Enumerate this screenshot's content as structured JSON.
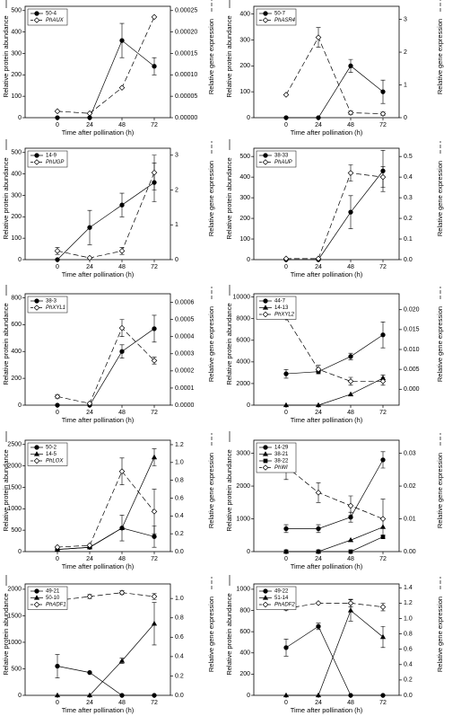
{
  "chart_data": [
    {
      "type": "line",
      "x": [
        0,
        24,
        48,
        72
      ],
      "xlim": [
        -24,
        84
      ],
      "xticks": [
        0,
        24,
        48,
        72
      ],
      "xlabel": "Time after pollination (h)",
      "ylabel": "Relative protein abundance",
      "y2label": "Relative gene expression",
      "ylim": [
        0,
        520
      ],
      "yticks": [
        0,
        100,
        200,
        300,
        400,
        500
      ],
      "y2lim": [
        0,
        0.00026
      ],
      "y2ticks": [
        {
          "value": 0,
          "label": "0.00000"
        },
        {
          "value": 5e-05,
          "label": "0.00005"
        },
        {
          "value": 0.0001,
          "label": "0.00010"
        },
        {
          "value": 0.00015,
          "label": "0.00015"
        },
        {
          "value": 0.0002,
          "label": "0.00020"
        },
        {
          "value": 0.00025,
          "label": "0.00025"
        }
      ],
      "series": [
        {
          "name": "50-4",
          "marker": "circle",
          "values": [
            0,
            0,
            360,
            240
          ],
          "errors": [
            0,
            0,
            80,
            40
          ]
        },
        {
          "name": "PhAUX",
          "marker": "diamond",
          "axis": "y2",
          "italic": true,
          "values": [
            1.5e-05,
            1e-05,
            7e-05,
            0.000235
          ],
          "errors": [
            0,
            0,
            0,
            0
          ]
        }
      ]
    },
    {
      "type": "line",
      "x": [
        0,
        24,
        48,
        72
      ],
      "xlim": [
        -24,
        84
      ],
      "xticks": [
        0,
        24,
        48,
        72
      ],
      "xlabel": "Time after pollination (h)",
      "ylabel": "Relative protein abundance",
      "y2label": "Relative gene expression",
      "ylim": [
        0,
        430
      ],
      "yticks": [
        0,
        100,
        200,
        300,
        400
      ],
      "y2lim": [
        0,
        3.4
      ],
      "y2ticks": [
        0,
        1,
        2,
        3
      ],
      "series": [
        {
          "name": "50-7",
          "marker": "circle",
          "values": [
            0,
            0,
            200,
            100
          ],
          "errors": [
            0,
            0,
            25,
            45
          ]
        },
        {
          "name": "PhASR4",
          "marker": "diamond",
          "axis": "y2",
          "italic": true,
          "values": [
            0.7,
            2.45,
            0.15,
            0.12
          ],
          "errors": [
            0,
            0.3,
            0.05,
            0.05
          ]
        }
      ]
    },
    {
      "type": "line",
      "x": [
        0,
        24,
        48,
        72
      ],
      "xlim": [
        -24,
        84
      ],
      "xticks": [
        0,
        24,
        48,
        72
      ],
      "xlabel": "Time after pollination (h)",
      "ylabel": "Relative protein abundance",
      "y2label": "Relative gene expression",
      "ylim": [
        0,
        520
      ],
      "yticks": [
        0,
        100,
        200,
        300,
        400,
        500
      ],
      "y2lim": [
        0,
        3.2
      ],
      "y2ticks": [
        0,
        1,
        2,
        3
      ],
      "series": [
        {
          "name": "14-9",
          "marker": "circle",
          "values": [
            0,
            150,
            255,
            360
          ],
          "errors": [
            0,
            80,
            55,
            90
          ]
        },
        {
          "name": "PhUGP",
          "marker": "diamond",
          "axis": "y2",
          "italic": true,
          "values": [
            0.25,
            0.05,
            0.25,
            2.5
          ],
          "errors": [
            0.1,
            0,
            0.1,
            0.5
          ]
        }
      ]
    },
    {
      "type": "line",
      "x": [
        0,
        24,
        48,
        72
      ],
      "xlim": [
        -24,
        84
      ],
      "xticks": [
        0,
        24,
        48,
        72
      ],
      "xlabel": "Time after pollination (h)",
      "ylabel": "Relative protein abundance",
      "y2label": "Relative gene expression",
      "ylim": [
        0,
        540
      ],
      "yticks": [
        0,
        100,
        200,
        300,
        400,
        500
      ],
      "y2lim": [
        0,
        0.54
      ],
      "y2ticks": [
        {
          "value": 0,
          "label": "0.0"
        },
        0.1,
        0.2,
        0.3,
        0.4,
        0.5
      ],
      "series": [
        {
          "name": "38-33",
          "marker": "circle",
          "values": [
            0,
            0,
            230,
            430
          ],
          "errors": [
            0,
            0,
            80,
            100
          ]
        },
        {
          "name": "PhAUP",
          "marker": "diamond",
          "axis": "y2",
          "italic": true,
          "values": [
            0.005,
            0.005,
            0.42,
            0.4
          ],
          "errors": [
            0,
            0,
            0.04,
            0.05
          ]
        }
      ]
    },
    {
      "type": "line",
      "x": [
        0,
        24,
        48,
        72
      ],
      "xlim": [
        -24,
        84
      ],
      "xticks": [
        0,
        24,
        48,
        72
      ],
      "xlabel": "Time after pollination (h)",
      "ylabel": "Relative protein abundance",
      "y2label": "Relative gene expression",
      "ylim": [
        0,
        830
      ],
      "yticks": [
        0,
        200,
        400,
        600,
        800
      ],
      "y2lim": [
        0,
        0.00065
      ],
      "y2ticks": [
        {
          "value": 0,
          "label": "0.0000"
        },
        {
          "value": 0.0001,
          "label": "0.0001"
        },
        {
          "value": 0.0002,
          "label": "0.0002"
        },
        {
          "value": 0.0003,
          "label": "0.0003"
        },
        {
          "value": 0.0004,
          "label": "0.0004"
        },
        {
          "value": 0.0005,
          "label": "0.0005"
        },
        {
          "value": 0.0006,
          "label": "0.0006"
        }
      ],
      "series": [
        {
          "name": "38-3",
          "marker": "circle",
          "values": [
            0,
            0,
            400,
            570
          ],
          "errors": [
            0,
            0,
            50,
            100
          ]
        },
        {
          "name": "PhXYL1",
          "marker": "diamond",
          "axis": "y2",
          "italic": true,
          "values": [
            5e-05,
            1e-05,
            0.00045,
            0.00026
          ],
          "errors": [
            1e-05,
            0,
            5e-05,
            2e-05
          ]
        }
      ]
    },
    {
      "type": "line",
      "x": [
        0,
        24,
        48,
        72
      ],
      "xlim": [
        -24,
        84
      ],
      "xticks": [
        0,
        24,
        48,
        72
      ],
      "xlabel": "Time after pollination (h)",
      "ylabel": "Relative protein abundance",
      "y2label": "Relative gene expression",
      "ylim": [
        0,
        10300
      ],
      "yticks": [
        0,
        2000,
        4000,
        6000,
        8000,
        10000
      ],
      "y2lim": [
        -0.004,
        0.024
      ],
      "y2ticks": [
        {
          "value": 0,
          "label": "0.000"
        },
        {
          "value": 0.005,
          "label": "0.005"
        },
        {
          "value": 0.01,
          "label": "0.010"
        },
        {
          "value": 0.015,
          "label": "0.015"
        },
        {
          "value": 0.02,
          "label": "0.020"
        }
      ],
      "series": [
        {
          "name": "44-7",
          "marker": "circle",
          "values": [
            2900,
            3100,
            4500,
            6500
          ],
          "errors": [
            400,
            200,
            300,
            1200
          ]
        },
        {
          "name": "14-13",
          "marker": "triangle",
          "values": [
            0,
            0,
            1000,
            2500
          ],
          "errors": [
            0,
            0,
            0,
            300
          ]
        },
        {
          "name": "PhXYL2",
          "marker": "diamond",
          "axis": "y2",
          "italic": true,
          "values": [
            0.018,
            0.005,
            0.002,
            0.002
          ],
          "errors": [
            0,
            0.001,
            0.001,
            0.001
          ]
        }
      ]
    },
    {
      "type": "line",
      "x": [
        0,
        24,
        48,
        72
      ],
      "xlim": [
        -24,
        84
      ],
      "xticks": [
        0,
        24,
        48,
        72
      ],
      "xlabel": "Time after pollination (h)",
      "ylabel": "Relative protein abundance",
      "y2label": "Relative gene expression",
      "ylim": [
        0,
        2600
      ],
      "yticks": [
        0,
        500,
        1000,
        1500,
        2000,
        2500
      ],
      "y2lim": [
        0,
        1.25
      ],
      "y2ticks": [
        {
          "value": 0,
          "label": "0.0"
        },
        0.2,
        0.4,
        0.6,
        0.8,
        {
          "value": 1,
          "label": "1.0"
        },
        1.2
      ],
      "series": [
        {
          "name": "50-2",
          "marker": "circle",
          "values": [
            50,
            100,
            550,
            350
          ],
          "errors": [
            0,
            0,
            300,
            250
          ]
        },
        {
          "name": "14-5",
          "marker": "triangle",
          "values": [
            50,
            100,
            550,
            2200
          ],
          "errors": [
            0,
            0,
            0,
            200
          ]
        },
        {
          "name": "PhLOX",
          "marker": "diamond",
          "axis": "y2",
          "italic": true,
          "values": [
            0.05,
            0.07,
            0.9,
            0.45
          ],
          "errors": [
            0,
            0,
            0.15,
            0.25
          ]
        }
      ]
    },
    {
      "type": "line",
      "x": [
        0,
        24,
        48,
        72
      ],
      "xlim": [
        -24,
        84
      ],
      "xticks": [
        0,
        24,
        48,
        72
      ],
      "xlabel": "Time after pollination (h)",
      "ylabel": "Relative protein abundance",
      "y2label": "Relative gene expression",
      "ylim": [
        0,
        3400
      ],
      "yticks": [
        0,
        1000,
        2000,
        3000
      ],
      "y2lim": [
        0,
        0.034
      ],
      "y2ticks": [
        {
          "value": 0,
          "label": "0.00"
        },
        {
          "value": 0.01,
          "label": "0.01"
        },
        {
          "value": 0.02,
          "label": "0.02"
        },
        {
          "value": 0.03,
          "label": "0.03"
        }
      ],
      "series": [
        {
          "name": "14-29",
          "marker": "circle",
          "values": [
            700,
            700,
            1050,
            2800
          ],
          "errors": [
            120,
            120,
            150,
            250
          ]
        },
        {
          "name": "38-21",
          "marker": "triangle",
          "values": [
            0,
            0,
            350,
            750
          ],
          "errors": [
            0,
            0,
            0,
            0
          ]
        },
        {
          "name": "38-22",
          "marker": "square",
          "values": [
            0,
            0,
            0,
            450
          ],
          "errors": [
            0,
            0,
            0,
            50
          ]
        },
        {
          "name": "PhWI",
          "marker": "diamond",
          "axis": "y2",
          "italic": true,
          "values": [
            0.026,
            0.018,
            0.014,
            0.01
          ],
          "errors": [
            0.004,
            0.003,
            0.003,
            0.006
          ]
        }
      ]
    },
    {
      "type": "line",
      "x": [
        0,
        24,
        48,
        72
      ],
      "xlim": [
        -24,
        84
      ],
      "xticks": [
        0,
        24,
        48,
        72
      ],
      "xlabel": "Time after pollination (h)",
      "ylabel": "Relative protein abundance",
      "y2label": "Relative gene expression",
      "ylim": [
        0,
        2100
      ],
      "yticks": [
        0,
        500,
        1000,
        1500,
        2000
      ],
      "y2lim": [
        0,
        1.15
      ],
      "y2ticks": [
        {
          "value": 0,
          "label": "0.0"
        },
        0.2,
        0.4,
        0.6,
        0.8,
        {
          "value": 1,
          "label": "1.0"
        }
      ],
      "series": [
        {
          "name": "49-21",
          "marker": "circle",
          "values": [
            550,
            430,
            0,
            0
          ],
          "errors": [
            220,
            0,
            0,
            0
          ]
        },
        {
          "name": "50-10",
          "marker": "triangle",
          "values": [
            0,
            0,
            650,
            1350
          ],
          "errors": [
            0,
            0,
            50,
            400
          ]
        },
        {
          "name": "PhADF1",
          "marker": "diamond",
          "axis": "y2",
          "italic": true,
          "values": [
            0.98,
            1.02,
            1.06,
            1.02
          ],
          "errors": [
            0,
            0.02,
            0.02,
            0.03
          ]
        }
      ]
    },
    {
      "type": "line",
      "x": [
        0,
        24,
        48,
        72
      ],
      "xlim": [
        -24,
        84
      ],
      "xticks": [
        0,
        24,
        48,
        72
      ],
      "xlabel": "Time after pollination (h)",
      "ylabel": "Relative protein abundance",
      "y2label": "Relative gene expression",
      "ylim": [
        0,
        1050
      ],
      "yticks": [
        0,
        200,
        400,
        600,
        800,
        1000
      ],
      "y2lim": [
        0,
        1.45
      ],
      "y2ticks": [
        {
          "value": 0,
          "label": "0.0"
        },
        0.2,
        0.4,
        0.6,
        0.8,
        {
          "value": 1,
          "label": "1.0"
        },
        1.2,
        1.4
      ],
      "series": [
        {
          "name": "49-22",
          "marker": "circle",
          "values": [
            450,
            650,
            0,
            0
          ],
          "errors": [
            80,
            30,
            0,
            0
          ]
        },
        {
          "name": "51-14",
          "marker": "triangle",
          "values": [
            0,
            0,
            800,
            550
          ],
          "errors": [
            0,
            0,
            100,
            100
          ]
        },
        {
          "name": "PhADF2",
          "marker": "diamond",
          "axis": "y2",
          "italic": true,
          "values": [
            1.13,
            1.2,
            1.2,
            1.15
          ],
          "errors": [
            0.02,
            0,
            0.05,
            0.05
          ]
        }
      ]
    }
  ]
}
